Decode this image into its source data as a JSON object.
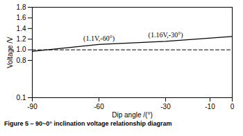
{
  "chart_data": {
    "type": "line",
    "title": "Figure 5    – 90~0° inclination voltage relationship diagram",
    "x_label": "Dip angle /(°)",
    "y_label": "Voltage /V",
    "x": [
      -90,
      -60,
      -30,
      0
    ],
    "series": [
      {
        "color": "#000000",
        "line_style": "solid",
        "values": [
          0.97,
          1.1,
          1.16,
          1.25
        ]
      },
      {
        "color": "#000000",
        "line_style": "dashed",
        "values": [
          1.0,
          1.0,
          1.0,
          1.0
        ]
      }
    ],
    "annotations": [
      {
        "text": "(1.1V,-60°)",
        "x": -60,
        "y": 1.1
      },
      {
        "text": "(1.16V,-30°)",
        "x": -30,
        "y": 1.16
      }
    ],
    "xlim": [
      -90,
      0
    ],
    "xticks": [
      -90,
      -60,
      -30,
      -10,
      0
    ],
    "ylim": [
      0.1,
      1.8
    ],
    "yticks": [
      0.1,
      0.8,
      {
        "value": 1.0,
        "label": "1.0"
      },
      1.2,
      1.4,
      1.6,
      1.8
    ],
    "grid": false
  }
}
